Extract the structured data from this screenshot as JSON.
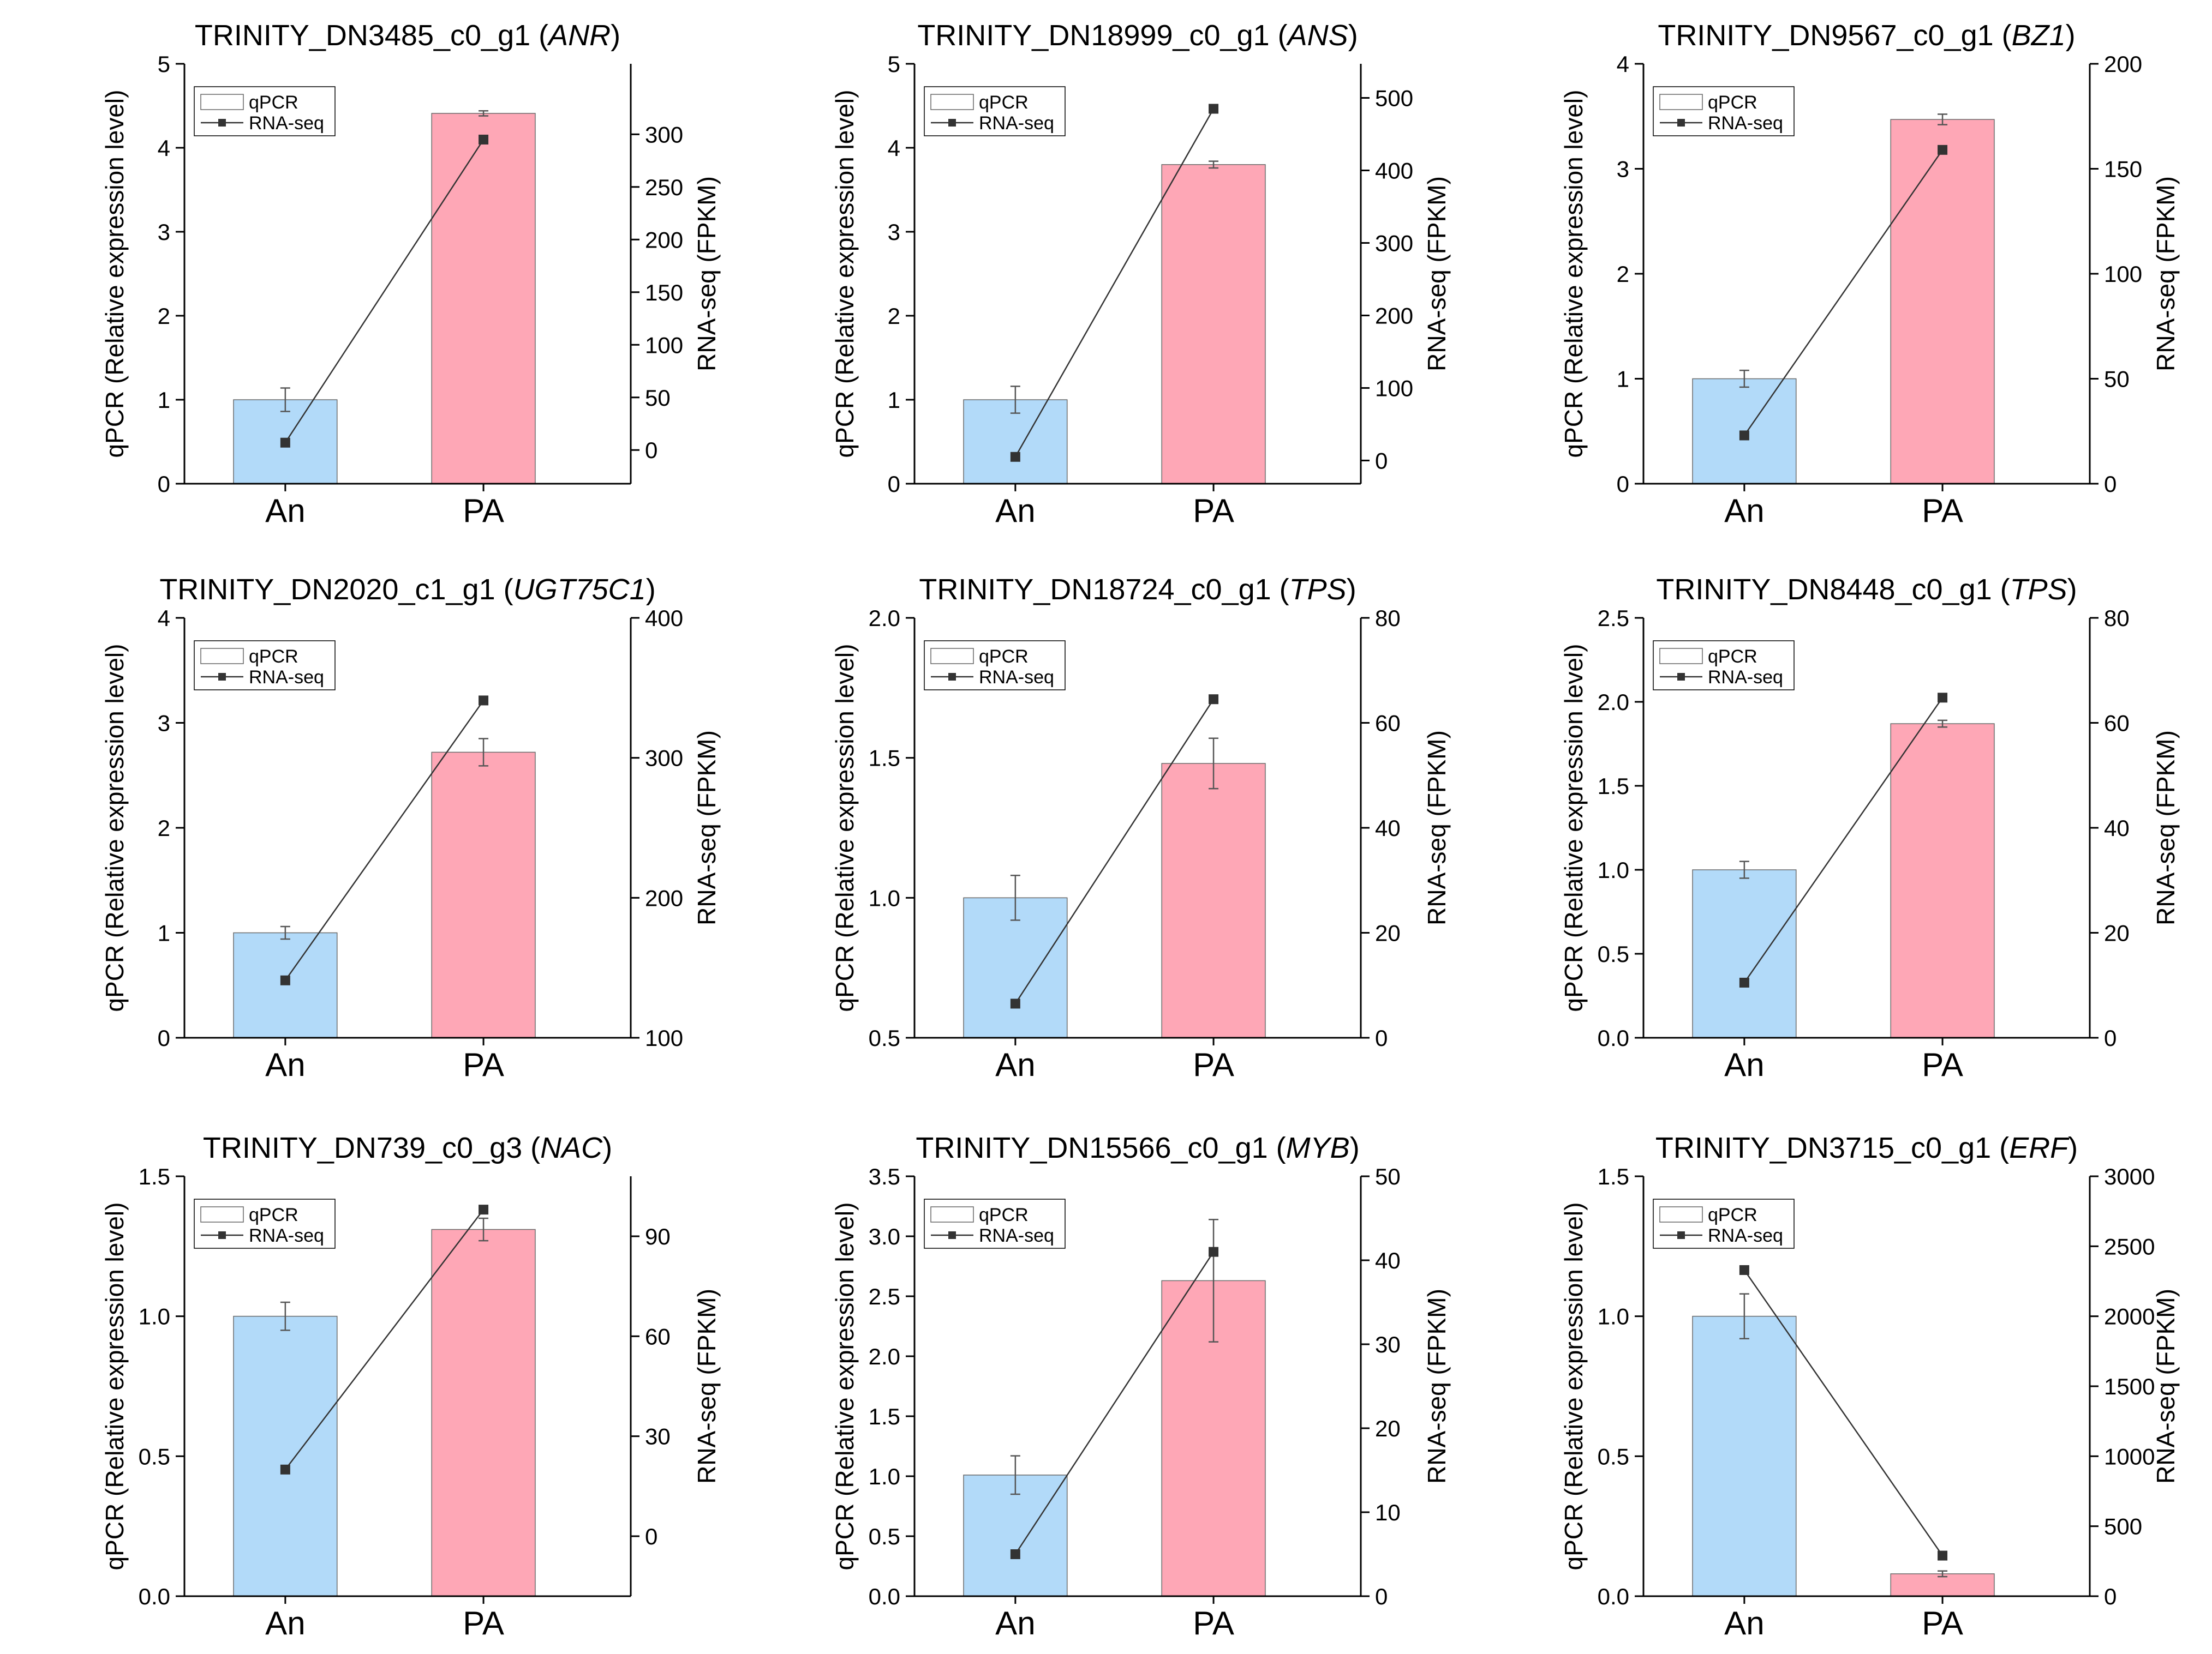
{
  "figure": {
    "background": "#ffffff",
    "bar_colors": [
      "#b2daf9",
      "#fea7b6"
    ],
    "line_color": "#333333",
    "error_bar_color": "#555555"
  },
  "chart_data": [
    {
      "type": "bar",
      "title": "TRINITY_DN3485_c0_g1",
      "gene": "ANR",
      "categories": [
        "An",
        "PA"
      ],
      "ylabel": "qPCR (Relative expression level)",
      "y2label": "RNA-seq (FPKM)",
      "ylim": [
        0,
        5
      ],
      "yticks": [
        0,
        1,
        2,
        3,
        4,
        5
      ],
      "ytick_labels": [
        "0",
        "1",
        "2",
        "3",
        "4",
        "5"
      ],
      "y2lim": [
        -32,
        367
      ],
      "y2ticks": [
        0,
        50,
        100,
        150,
        200,
        250,
        300
      ],
      "y2tick_labels": [
        "0",
        "50",
        "100",
        "150",
        "200",
        "250",
        "300"
      ],
      "legend": {
        "position": "top-left",
        "entries": [
          "qPCR",
          "RNA-seq"
        ]
      },
      "series": [
        {
          "name": "qPCR",
          "type": "bar",
          "axis": "left",
          "values": [
            1.0,
            4.41
          ],
          "errors": [
            0.14,
            0.03
          ]
        },
        {
          "name": "RNA-seq",
          "type": "line",
          "axis": "right",
          "values": [
            7,
            295
          ]
        }
      ]
    },
    {
      "type": "bar",
      "title": "TRINITY_DN18999_c0_g1",
      "gene": "ANS",
      "categories": [
        "An",
        "PA"
      ],
      "ylabel": "qPCR (Relative expression level)",
      "y2label": "RNA-seq (FPKM)",
      "ylim": [
        0,
        5
      ],
      "yticks": [
        0,
        1,
        2,
        3,
        4,
        5
      ],
      "ytick_labels": [
        "0",
        "1",
        "2",
        "3",
        "4",
        "5"
      ],
      "y2lim": [
        -32,
        547
      ],
      "y2ticks": [
        0,
        100,
        200,
        300,
        400,
        500
      ],
      "y2tick_labels": [
        "0",
        "100",
        "200",
        "300",
        "400",
        "500"
      ],
      "legend": {
        "position": "top-left",
        "entries": [
          "qPCR",
          "RNA-seq"
        ]
      },
      "series": [
        {
          "name": "qPCR",
          "type": "bar",
          "axis": "left",
          "values": [
            1.0,
            3.8
          ],
          "errors": [
            0.16,
            0.04
          ]
        },
        {
          "name": "RNA-seq",
          "type": "line",
          "axis": "right",
          "values": [
            5,
            485
          ]
        }
      ]
    },
    {
      "type": "bar",
      "title": "TRINITY_DN9567_c0_g1",
      "gene": "BZ1",
      "categories": [
        "An",
        "PA"
      ],
      "ylabel": "qPCR (Relative expression level)",
      "y2label": "RNA-seq (FPKM)",
      "ylim": [
        0,
        4
      ],
      "yticks": [
        0,
        1,
        2,
        3,
        4
      ],
      "ytick_labels": [
        "0",
        "1",
        "2",
        "3",
        "4"
      ],
      "y2lim": [
        0,
        200
      ],
      "y2ticks": [
        0,
        50,
        100,
        150,
        200
      ],
      "y2tick_labels": [
        "0",
        "50",
        "100",
        "150",
        "200"
      ],
      "legend": {
        "position": "top-left",
        "entries": [
          "qPCR",
          "RNA-seq"
        ]
      },
      "series": [
        {
          "name": "qPCR",
          "type": "bar",
          "axis": "left",
          "values": [
            1.0,
            3.47
          ],
          "errors": [
            0.08,
            0.05
          ]
        },
        {
          "name": "RNA-seq",
          "type": "line",
          "axis": "right",
          "values": [
            23,
            159
          ]
        }
      ]
    },
    {
      "type": "bar",
      "title": "TRINITY_DN2020_c1_g1",
      "gene": "UGT75C1",
      "categories": [
        "An",
        "PA"
      ],
      "ylabel": "qPCR (Relative expression level)",
      "y2label": "RNA-seq (FPKM)",
      "ylim": [
        0,
        4
      ],
      "yticks": [
        0,
        1,
        2,
        3,
        4
      ],
      "ytick_labels": [
        "0",
        "1",
        "2",
        "3",
        "4"
      ],
      "y2lim": [
        100,
        400
      ],
      "y2ticks": [
        100,
        200,
        300,
        400
      ],
      "y2tick_labels": [
        "100",
        "200",
        "300",
        "400"
      ],
      "legend": {
        "position": "top-left",
        "entries": [
          "qPCR",
          "RNA-seq"
        ]
      },
      "series": [
        {
          "name": "qPCR",
          "type": "bar",
          "axis": "left",
          "values": [
            1.0,
            2.72
          ],
          "errors": [
            0.06,
            0.13
          ]
        },
        {
          "name": "RNA-seq",
          "type": "line",
          "axis": "right",
          "values": [
            141,
            341
          ]
        }
      ]
    },
    {
      "type": "bar",
      "title": "TRINITY_DN18724_c0_g1",
      "gene": "TPS",
      "categories": [
        "An",
        "PA"
      ],
      "ylabel": "qPCR (Relative expression level)",
      "y2label": "RNA-seq (FPKM)",
      "ylim": [
        0.5,
        2.0
      ],
      "yticks": [
        0.5,
        1.0,
        1.5,
        2.0
      ],
      "ytick_labels": [
        "0.5",
        "1.0",
        "1.5",
        "2.0"
      ],
      "y2lim": [
        0,
        80
      ],
      "y2ticks": [
        0,
        20,
        40,
        60,
        80
      ],
      "y2tick_labels": [
        "0",
        "20",
        "40",
        "60",
        "80"
      ],
      "legend": {
        "position": "top-left",
        "entries": [
          "qPCR",
          "RNA-seq"
        ]
      },
      "series": [
        {
          "name": "qPCR",
          "type": "bar",
          "axis": "left",
          "values": [
            1.0,
            1.48
          ],
          "errors": [
            0.08,
            0.09
          ]
        },
        {
          "name": "RNA-seq",
          "type": "line",
          "axis": "right",
          "values": [
            6.5,
            64.5
          ]
        }
      ]
    },
    {
      "type": "bar",
      "title": "TRINITY_DN8448_c0_g1",
      "gene": "TPS",
      "categories": [
        "An",
        "PA"
      ],
      "ylabel": "qPCR (Relative expression level)",
      "y2label": "RNA-seq (FPKM)",
      "ylim": [
        0,
        2.5
      ],
      "yticks": [
        0,
        0.5,
        1.0,
        1.5,
        2.0,
        2.5
      ],
      "ytick_labels": [
        "0.0",
        "0.5",
        "1.0",
        "1.5",
        "2.0",
        "2.5"
      ],
      "y2lim": [
        0,
        80
      ],
      "y2ticks": [
        0,
        20,
        40,
        60,
        80
      ],
      "y2tick_labels": [
        "0",
        "20",
        "40",
        "60",
        "80"
      ],
      "legend": {
        "position": "top-left",
        "entries": [
          "qPCR",
          "RNA-seq"
        ]
      },
      "series": [
        {
          "name": "qPCR",
          "type": "bar",
          "axis": "left",
          "values": [
            1.0,
            1.87
          ],
          "errors": [
            0.05,
            0.02
          ]
        },
        {
          "name": "RNA-seq",
          "type": "line",
          "axis": "right",
          "values": [
            10.5,
            64.8
          ]
        }
      ]
    },
    {
      "type": "bar",
      "title": "TRINITY_DN739_c0_g3",
      "gene": "NAC",
      "categories": [
        "An",
        "PA"
      ],
      "ylabel": "qPCR (Relative expression level)",
      "y2label": "RNA-seq (FPKM)",
      "ylim": [
        0,
        1.5
      ],
      "yticks": [
        0,
        0.5,
        1.0,
        1.5
      ],
      "ytick_labels": [
        "0.0",
        "0.5",
        "1.0",
        "1.5"
      ],
      "y2lim": [
        -18,
        108
      ],
      "y2ticks": [
        0,
        30,
        60,
        90
      ],
      "y2tick_labels": [
        "0",
        "30",
        "60",
        "90"
      ],
      "legend": {
        "position": "top-left",
        "entries": [
          "qPCR",
          "RNA-seq"
        ]
      },
      "series": [
        {
          "name": "qPCR",
          "type": "bar",
          "axis": "left",
          "values": [
            1.0,
            1.31
          ],
          "errors": [
            0.05,
            0.04
          ]
        },
        {
          "name": "RNA-seq",
          "type": "line",
          "axis": "right",
          "values": [
            20,
            98
          ]
        }
      ]
    },
    {
      "type": "bar",
      "title": "TRINITY_DN15566_c0_g1",
      "gene": "MYB",
      "categories": [
        "An",
        "PA"
      ],
      "ylabel": "qPCR (Relative expression level)",
      "y2label": "RNA-seq (FPKM)",
      "ylim": [
        0,
        3.5
      ],
      "yticks": [
        0,
        0.5,
        1.0,
        1.5,
        2.0,
        2.5,
        3.0,
        3.5
      ],
      "ytick_labels": [
        "0.0",
        "0.5",
        "1.0",
        "1.5",
        "2.0",
        "2.5",
        "3.0",
        "3.5"
      ],
      "y2lim": [
        0,
        50
      ],
      "y2ticks": [
        0,
        10,
        20,
        30,
        40,
        50
      ],
      "y2tick_labels": [
        "0",
        "10",
        "20",
        "30",
        "40",
        "50"
      ],
      "legend": {
        "position": "top-left",
        "entries": [
          "qPCR",
          "RNA-seq"
        ]
      },
      "series": [
        {
          "name": "qPCR",
          "type": "bar",
          "axis": "left",
          "values": [
            1.01,
            2.63
          ],
          "errors": [
            0.16,
            0.51
          ]
        },
        {
          "name": "RNA-seq",
          "type": "line",
          "axis": "right",
          "values": [
            5,
            41
          ]
        }
      ]
    },
    {
      "type": "bar",
      "title": "TRINITY_DN3715_c0_g1",
      "gene": "ERF",
      "categories": [
        "An",
        "PA"
      ],
      "ylabel": "qPCR (Relative expression level)",
      "y2label": "RNA-seq (FPKM)",
      "ylim": [
        0,
        1.5
      ],
      "yticks": [
        0,
        0.5,
        1.0,
        1.5
      ],
      "ytick_labels": [
        "0.0",
        "0.5",
        "1.0",
        "1.5"
      ],
      "y2lim": [
        0,
        3000
      ],
      "y2ticks": [
        0,
        500,
        1000,
        1500,
        2000,
        2500,
        3000
      ],
      "y2tick_labels": [
        "0",
        "500",
        "1000",
        "1500",
        "2000",
        "2500",
        "3000"
      ],
      "legend": {
        "position": "top-left",
        "entries": [
          "qPCR",
          "RNA-seq"
        ]
      },
      "series": [
        {
          "name": "qPCR",
          "type": "bar",
          "axis": "left",
          "values": [
            1.0,
            0.08
          ],
          "errors": [
            0.08,
            0.01
          ]
        },
        {
          "name": "RNA-seq",
          "type": "line",
          "axis": "right",
          "values": [
            2330,
            290
          ]
        }
      ]
    }
  ]
}
